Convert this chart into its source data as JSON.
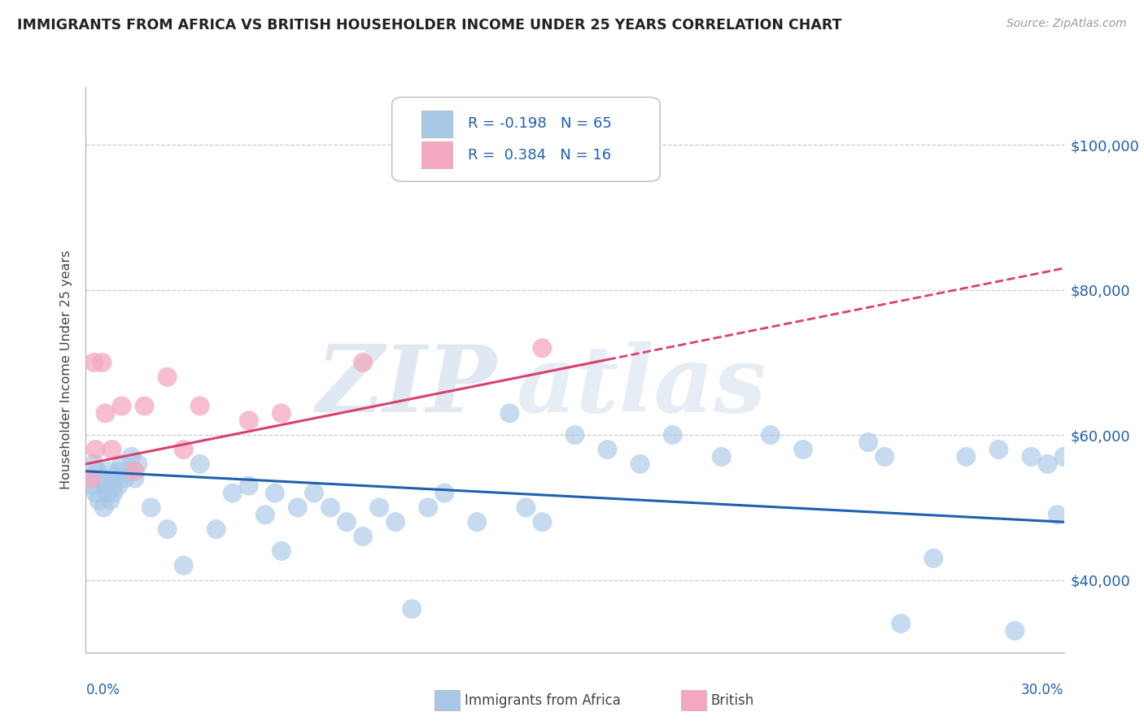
{
  "title": "IMMIGRANTS FROM AFRICA VS BRITISH HOUSEHOLDER INCOME UNDER 25 YEARS CORRELATION CHART",
  "source": "Source: ZipAtlas.com",
  "ylabel": "Householder Income Under 25 years",
  "xlim": [
    0.0,
    30.0
  ],
  "ylim": [
    30000,
    108000
  ],
  "yticks": [
    40000,
    60000,
    80000,
    100000
  ],
  "ytick_labels": [
    "$40,000",
    "$60,000",
    "$80,000",
    "$100,000"
  ],
  "legend1_R": "-0.198",
  "legend1_N": "65",
  "legend2_R": "0.384",
  "legend2_N": "16",
  "color_blue": "#A8C8E8",
  "color_pink": "#F4A8C0",
  "line_color_blue": "#2060B0",
  "line_color_pink": "#D84070",
  "axis_label_color": "#2060B0",
  "grid_color": "#cccccc",
  "watermark_zip": "ZIP",
  "watermark_atlas": "atlas",
  "blue_x": [
    0.15,
    0.2,
    0.25,
    0.3,
    0.35,
    0.4,
    0.5,
    0.55,
    0.6,
    0.65,
    0.7,
    0.75,
    0.8,
    0.85,
    0.9,
    1.0,
    1.0,
    1.1,
    1.2,
    1.3,
    1.4,
    1.5,
    1.6,
    2.0,
    2.5,
    3.0,
    3.5,
    4.0,
    4.5,
    5.0,
    5.5,
    5.8,
    6.0,
    6.5,
    7.0,
    7.5,
    8.0,
    8.5,
    9.0,
    9.5,
    10.0,
    10.5,
    11.0,
    12.0,
    13.0,
    13.5,
    14.0,
    15.0,
    16.0,
    17.0,
    18.0,
    19.5,
    21.0,
    22.0,
    24.0,
    24.5,
    25.0,
    26.0,
    27.0,
    28.0,
    28.5,
    29.0,
    29.5,
    29.8,
    30.0
  ],
  "blue_y": [
    54000,
    53000,
    56000,
    52000,
    55000,
    51000,
    54000,
    50000,
    53000,
    52000,
    55000,
    51000,
    53000,
    52000,
    54000,
    55000,
    53000,
    56000,
    54000,
    55000,
    57000,
    54000,
    56000,
    50000,
    47000,
    42000,
    56000,
    47000,
    52000,
    53000,
    49000,
    52000,
    44000,
    50000,
    52000,
    50000,
    48000,
    46000,
    50000,
    48000,
    36000,
    50000,
    52000,
    48000,
    63000,
    50000,
    48000,
    60000,
    58000,
    56000,
    60000,
    57000,
    60000,
    58000,
    59000,
    57000,
    34000,
    43000,
    57000,
    58000,
    33000,
    57000,
    56000,
    49000,
    57000
  ],
  "pink_x": [
    0.15,
    0.25,
    0.3,
    0.5,
    0.6,
    0.8,
    1.1,
    1.5,
    1.8,
    2.5,
    3.0,
    3.5,
    5.0,
    6.0,
    8.5,
    14.0
  ],
  "pink_y": [
    54000,
    70000,
    58000,
    70000,
    63000,
    58000,
    64000,
    55000,
    64000,
    68000,
    58000,
    64000,
    62000,
    63000,
    70000,
    72000
  ],
  "blue_trend_x0": 0.0,
  "blue_trend_x1": 30.0,
  "blue_trend_y0": 55000,
  "blue_trend_y1": 48000,
  "pink_trend_x0": 0.0,
  "pink_trend_x1": 30.0,
  "pink_trend_y0": 56000,
  "pink_trend_y1": 83000
}
